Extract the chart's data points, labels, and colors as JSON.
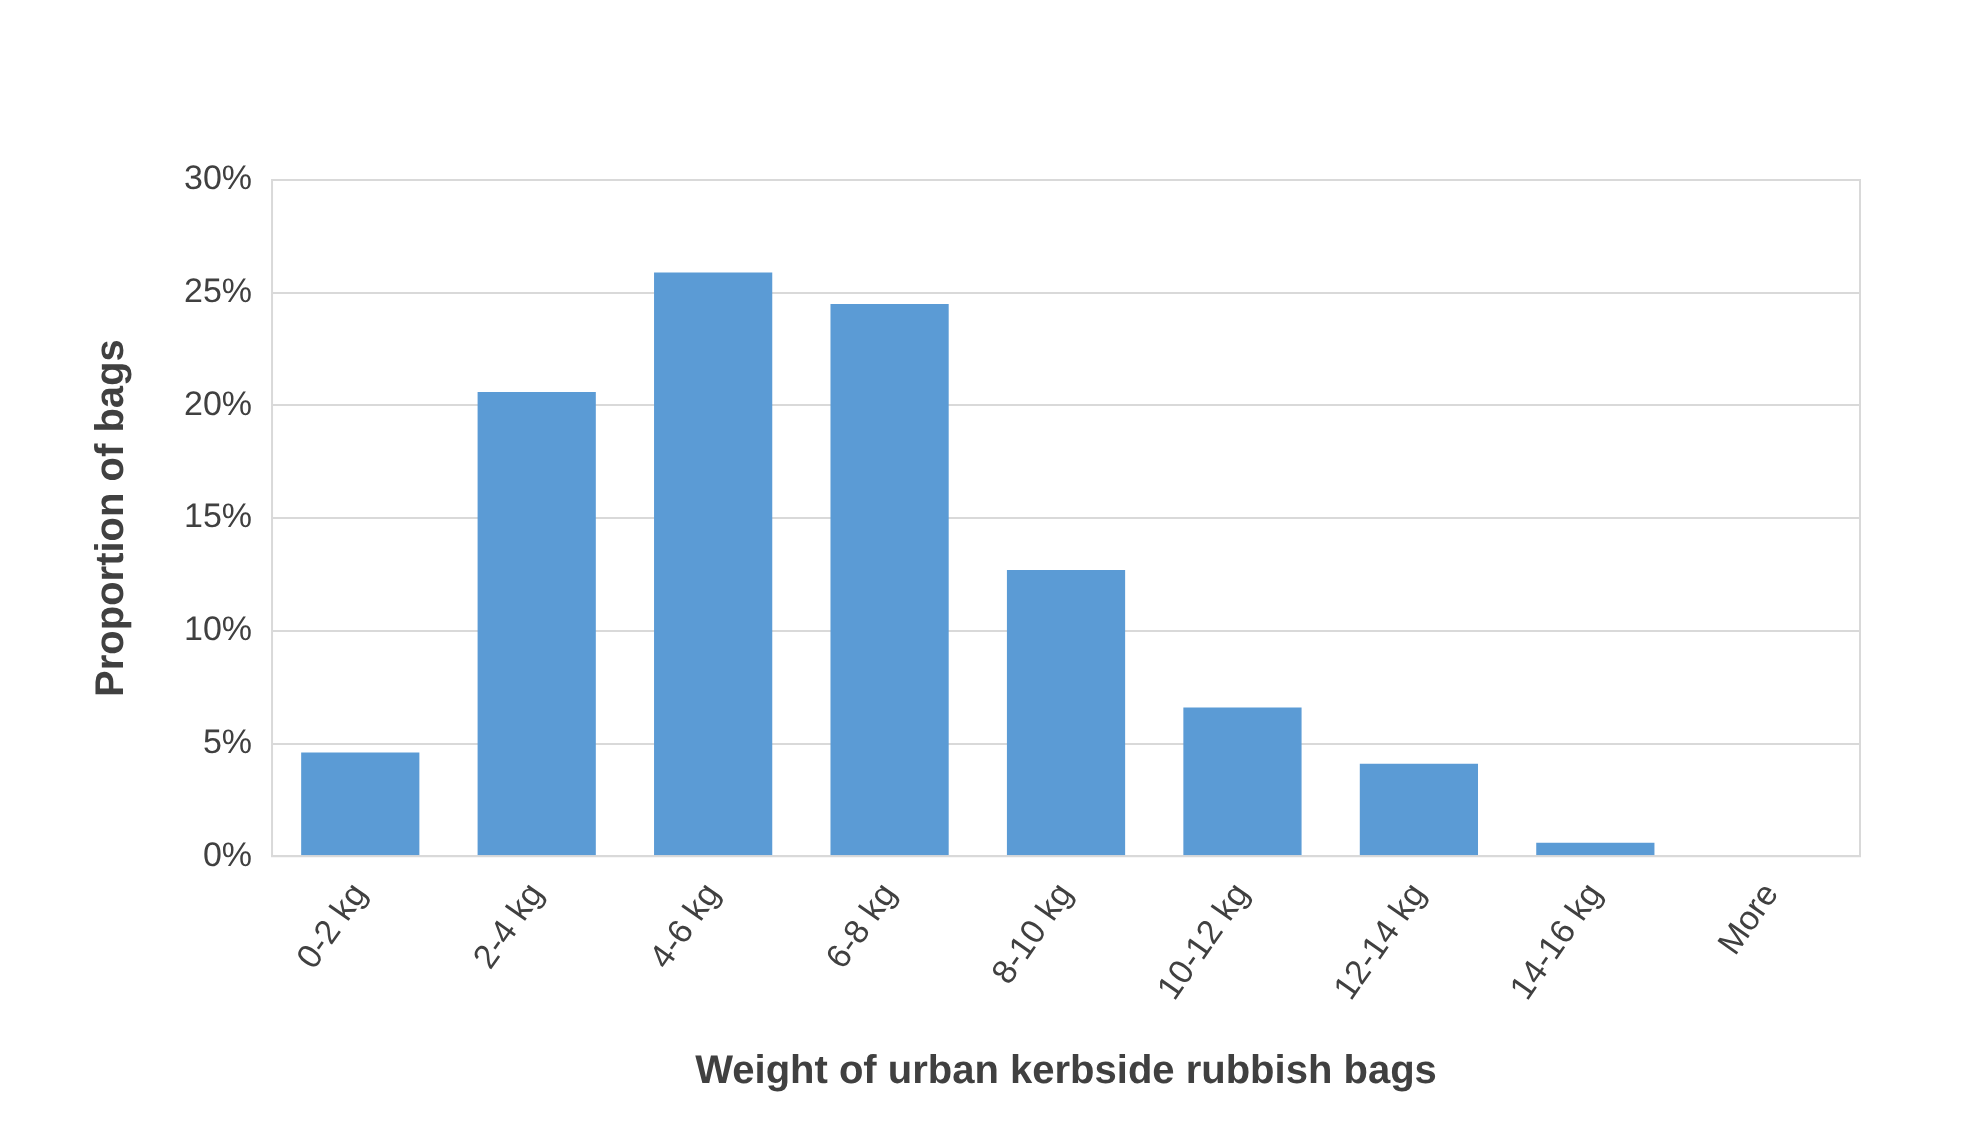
{
  "chart_data": {
    "type": "bar",
    "xlabel": "Weight of urban kerbside rubbish bags",
    "ylabel": "Proportion of bags",
    "categories": [
      "0-2 kg",
      "2-4 kg",
      "4-6 kg",
      "6-8 kg",
      "8-10 kg",
      "10-12 kg",
      "12-14 kg",
      "14-16 kg",
      "More"
    ],
    "values": [
      4.6,
      20.6,
      25.9,
      24.5,
      12.7,
      6.6,
      4.1,
      0.6,
      0
    ],
    "color": "#5b9bd5",
    "ylim": [
      0,
      30
    ],
    "yticks": [
      {
        "value": 0,
        "label": "0%"
      },
      {
        "value": 5,
        "label": "5%"
      },
      {
        "value": 10,
        "label": "10%"
      },
      {
        "value": 15,
        "label": "15%"
      },
      {
        "value": 20,
        "label": "20%"
      },
      {
        "value": 25,
        "label": "25%"
      },
      {
        "value": 30,
        "label": "30%"
      }
    ],
    "grid": "y",
    "legend": false
  }
}
